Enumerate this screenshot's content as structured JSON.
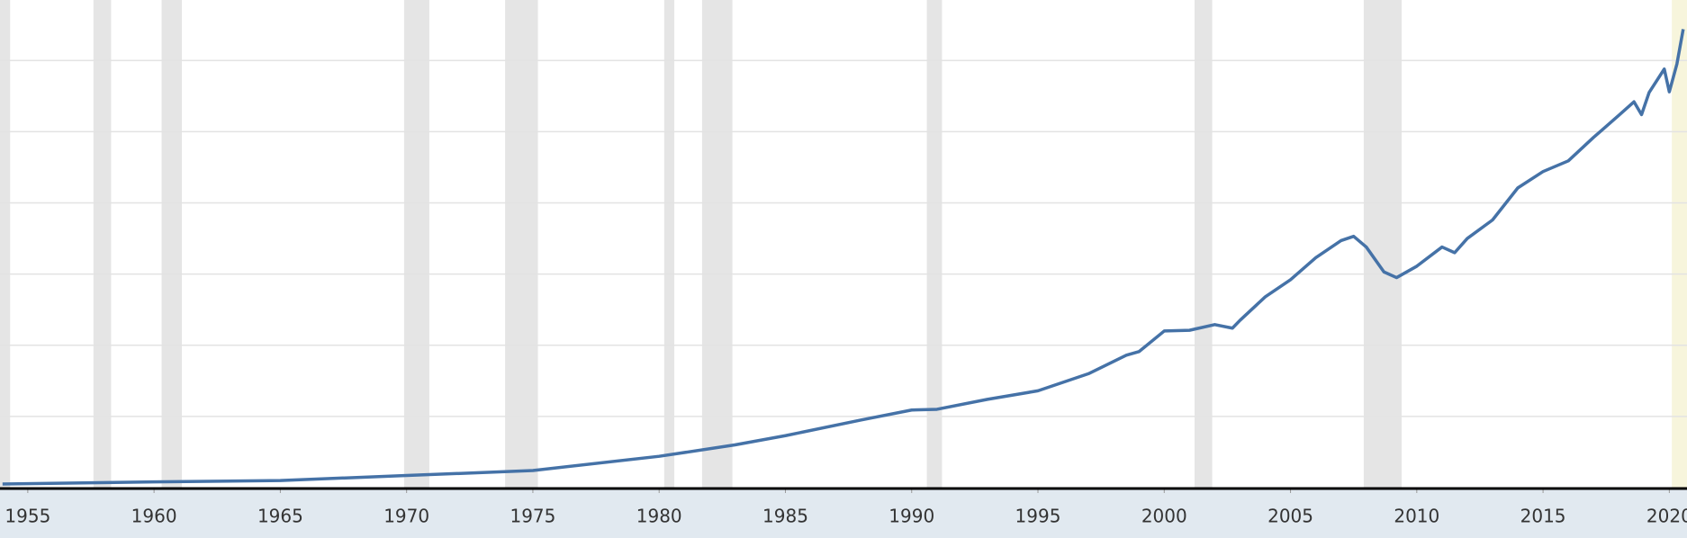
{
  "chart_data": {
    "type": "line",
    "x": [
      1954,
      1960,
      1965,
      1970,
      1975,
      1980,
      1983,
      1985,
      1988,
      1990,
      1991,
      1993,
      1995,
      1997,
      1998.5,
      1999,
      2000,
      2001,
      2002,
      2002.7,
      2003,
      2004,
      2005,
      2006,
      2007,
      2007.5,
      2008,
      2008.7,
      2009.2,
      2010,
      2011,
      2011.5,
      2012,
      2013,
      2014,
      2015,
      2016,
      2017,
      2018,
      2018.6,
      2018.9,
      2019.2,
      2019.8,
      2020.0,
      2020.3,
      2020.55
    ],
    "series": [
      {
        "color": "#4572a7",
        "values": [
          0.05,
          0.08,
          0.1,
          0.17,
          0.24,
          0.44,
          0.6,
          0.73,
          0.95,
          1.09,
          1.1,
          1.24,
          1.36,
          1.6,
          1.86,
          1.91,
          2.2,
          2.21,
          2.29,
          2.24,
          2.35,
          2.68,
          2.92,
          3.23,
          3.47,
          3.53,
          3.38,
          3.03,
          2.95,
          3.11,
          3.38,
          3.3,
          3.5,
          3.76,
          4.21,
          4.44,
          4.59,
          4.92,
          5.23,
          5.42,
          5.24,
          5.55,
          5.88,
          5.56,
          5.95,
          6.44
        ]
      }
    ],
    "xlim": [
      1953.9,
      2020.7
    ],
    "xticks": [
      1955,
      1960,
      1965,
      1970,
      1975,
      1980,
      1985,
      1990,
      1995,
      2000,
      2005,
      2010,
      2015,
      2020
    ],
    "ylim": [
      0,
      6.85
    ],
    "yticks": [
      1,
      2,
      3,
      4,
      5,
      6
    ],
    "grid": true,
    "recessions": [
      [
        1953.9,
        1954.3
      ],
      [
        1957.6,
        1958.3
      ],
      [
        1960.3,
        1961.1
      ],
      [
        1969.9,
        1970.9
      ],
      [
        1973.9,
        1975.2
      ],
      [
        1980.2,
        1980.6
      ],
      [
        1981.7,
        1982.9
      ],
      [
        1990.6,
        1991.2
      ],
      [
        2001.2,
        2001.9
      ],
      [
        2007.9,
        2009.4
      ]
    ],
    "recession_color": "#e5e5e5",
    "highlight": [
      2020.1,
      2020.7
    ],
    "highlight_color": "#f7f5dc"
  }
}
